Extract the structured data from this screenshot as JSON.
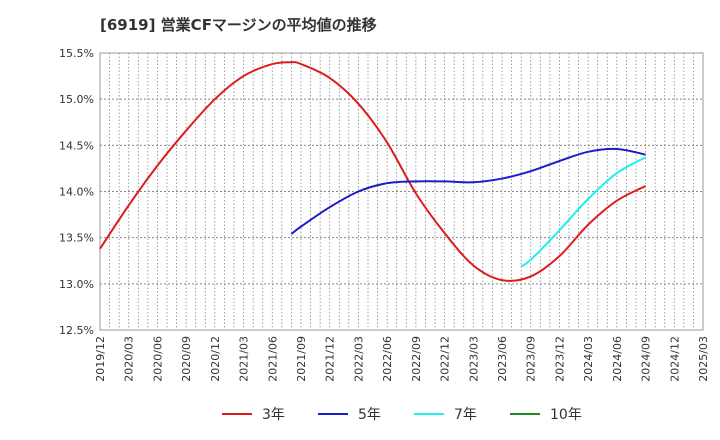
{
  "chart_data": {
    "type": "line",
    "title": "[6919]  営業CFマージンの平均値の推移",
    "xlabel": "",
    "ylabel": "",
    "x_ticks": [
      "2019/12",
      "2020/03",
      "2020/06",
      "2020/09",
      "2020/12",
      "2021/03",
      "2021/06",
      "2021/09",
      "2021/12",
      "2022/03",
      "2022/06",
      "2022/09",
      "2022/12",
      "2023/03",
      "2023/06",
      "2023/09",
      "2023/12",
      "2024/03",
      "2024/06",
      "2024/09",
      "2024/12",
      "2025/03"
    ],
    "y_ticks": [
      "12.5%",
      "13.0%",
      "13.5%",
      "14.0%",
      "14.5%",
      "15.0%",
      "15.5%"
    ],
    "ylim": [
      12.5,
      15.5
    ],
    "grid": true,
    "legend_position": "bottom",
    "series": [
      {
        "name": "3年",
        "color": "#dd1c1c",
        "points": [
          [
            "2019/12",
            13.38
          ],
          [
            "2020/03",
            13.85
          ],
          [
            "2020/06",
            14.28
          ],
          [
            "2020/09",
            14.66
          ],
          [
            "2020/12",
            15.0
          ],
          [
            "2021/03",
            15.25
          ],
          [
            "2021/06",
            15.38
          ],
          [
            "2021/08",
            15.4
          ],
          [
            "2021/09",
            15.38
          ],
          [
            "2021/12",
            15.23
          ],
          [
            "2022/03",
            14.95
          ],
          [
            "2022/06",
            14.53
          ],
          [
            "2022/09",
            13.98
          ],
          [
            "2022/12",
            13.55
          ],
          [
            "2023/03",
            13.2
          ],
          [
            "2023/06",
            13.04
          ],
          [
            "2023/09",
            13.08
          ],
          [
            "2023/12",
            13.3
          ],
          [
            "2024/03",
            13.64
          ],
          [
            "2024/06",
            13.9
          ],
          [
            "2024/09",
            14.06
          ]
        ]
      },
      {
        "name": "5年",
        "color": "#1c1cc8",
        "points": [
          [
            "2021/08",
            13.54
          ],
          [
            "2021/09",
            13.62
          ],
          [
            "2021/12",
            13.83
          ],
          [
            "2022/03",
            14.0
          ],
          [
            "2022/06",
            14.09
          ],
          [
            "2022/09",
            14.11
          ],
          [
            "2022/12",
            14.11
          ],
          [
            "2023/03",
            14.1
          ],
          [
            "2023/06",
            14.14
          ],
          [
            "2023/09",
            14.22
          ],
          [
            "2023/12",
            14.33
          ],
          [
            "2024/03",
            14.43
          ],
          [
            "2024/06",
            14.46
          ],
          [
            "2024/09",
            14.4
          ]
        ]
      },
      {
        "name": "7年",
        "color": "#1cf0f0",
        "points": [
          [
            "2023/08",
            13.19
          ],
          [
            "2023/09",
            13.26
          ],
          [
            "2023/12",
            13.58
          ],
          [
            "2024/03",
            13.92
          ],
          [
            "2024/06",
            14.2
          ],
          [
            "2024/09",
            14.37
          ]
        ]
      },
      {
        "name": "10年",
        "color": "#1c8c1c",
        "points": []
      }
    ]
  }
}
